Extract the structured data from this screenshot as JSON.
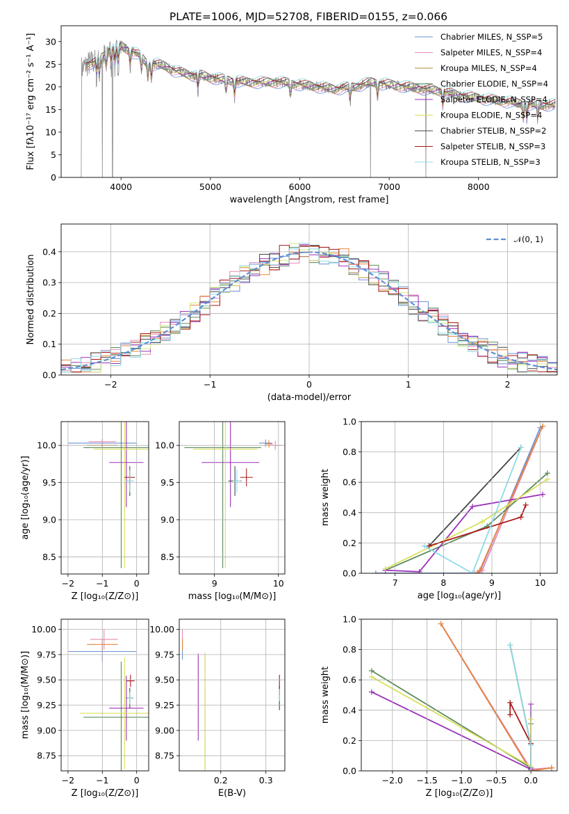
{
  "figure": {
    "title": "PLATE=1006, MJD=52708, FIBERID=0155, z=0.066"
  },
  "chart_data": [
    {
      "id": "spectrum",
      "type": "line",
      "title": "PLATE=1006, MJD=52708, FIBERID=0155, z=0.066",
      "xlabel": "wavelength [Angstrom, rest frame]",
      "ylabel": "Flux [fλ10⁻¹⁷ erg cm⁻² s⁻¹ A⁻¹]",
      "xlim": [
        3330,
        8880
      ],
      "ylim": [
        0,
        33.5
      ],
      "xticks": [
        4000,
        5000,
        6000,
        7000,
        8000
      ],
      "yticks": [
        0,
        5,
        10,
        15,
        20,
        25,
        30
      ],
      "grid": false,
      "legend_position": "top-right",
      "continuum": {
        "x": [
          3560,
          3620,
          3700,
          3760,
          3820,
          3880,
          3950,
          4000,
          4100,
          4200,
          4300,
          4400,
          4500,
          4600,
          4700,
          4800,
          4900,
          5000,
          5200,
          5400,
          5600,
          5800,
          6000,
          6200,
          6400,
          6600,
          6800,
          7000,
          7200,
          7400,
          7600,
          7800,
          8000,
          8200,
          8400,
          8600,
          8800
        ],
        "y": [
          24,
          25,
          25.5,
          26,
          27,
          28.5,
          28,
          29,
          28,
          27,
          25,
          25,
          24.5,
          23.5,
          23,
          22.5,
          22.5,
          22,
          21.5,
          21,
          21,
          21,
          20.5,
          20,
          19.5,
          20,
          21,
          20.5,
          20,
          19.5,
          19,
          18,
          17.5,
          17,
          16.5,
          16,
          16
        ]
      },
      "absorption_lines": [
        3727,
        3760,
        3835,
        3889,
        3933,
        3968,
        4102,
        4227,
        4300,
        4340,
        4861,
        5175,
        5270,
        5895,
        6563,
        6870,
        7600,
        8500,
        8542,
        8662
      ],
      "spikes_to_zero": [
        3555,
        3790,
        3905,
        6790,
        7410
      ],
      "series": [
        {
          "name": "Chabrier MILES, N_SSP=5",
          "color": "#6a8fd6"
        },
        {
          "name": "Salpeter MILES, N_SSP=4",
          "color": "#e889b6"
        },
        {
          "name": "Kroupa MILES, N_SSP=4",
          "color": "#b38a2e"
        },
        {
          "name": "Chabrier ELODIE, N_SSP=4",
          "color": "#5c8a5c"
        },
        {
          "name": "Salpeter ELODIE, N_SSP=4",
          "color": "#9a2fb8"
        },
        {
          "name": "Kroupa ELODIE, N_SSP=4",
          "color": "#d9e05a"
        },
        {
          "name": "Chabrier STELIB, N_SSP=2",
          "color": "#444444"
        },
        {
          "name": "Salpeter STELIB, N_SSP=3",
          "color": "#a81818"
        },
        {
          "name": "Kroupa STELIB, N_SSP=3",
          "color": "#8edbe6"
        }
      ],
      "data_color": "#8a8a8a"
    },
    {
      "id": "residuals",
      "type": "line",
      "title": "",
      "xlabel": "(data-model)/error",
      "ylabel": "Normed distribution",
      "xlim": [
        -2.5,
        2.5
      ],
      "ylim": [
        0,
        0.49
      ],
      "xticks": [
        -2,
        -1,
        0,
        1,
        2
      ],
      "yticks": [
        0.0,
        0.1,
        0.2,
        0.3,
        0.4
      ],
      "grid": true,
      "legend_position": "top-right",
      "gaussian_label": "𝒩(0, 1)",
      "gaussian_color": "#5b8fd6",
      "bin_width": 0.1,
      "hist_colors": [
        "#6a8fd6",
        "#e889b6",
        "#e8843a",
        "#5c8a5c",
        "#9a2fb8",
        "#d4e87a",
        "#444444",
        "#a81818",
        "#8edbe6"
      ]
    },
    {
      "id": "age_vs_Z",
      "type": "scatter",
      "title": "",
      "xlabel": "Z [log₁₀(Z/Z⊙)]",
      "ylabel": "age  [log₁₀(age/yr)]",
      "xlim": [
        -2.2,
        0.35
      ],
      "ylim": [
        8.27,
        10.32
      ],
      "xticks": [
        -2,
        -1,
        0
      ],
      "yticks": [
        8.5,
        9.0,
        9.5,
        10.0
      ],
      "grid": true,
      "points": [
        {
          "x": -1.0,
          "xerr": 1.0,
          "y": 10.03,
          "yerr": 0.05,
          "color": "#6a8fd6"
        },
        {
          "x": -1.0,
          "xerr": 0.4,
          "y": 10.05,
          "yerr": 0.04,
          "color": "#e889b6"
        },
        {
          "x": -1.0,
          "xerr": 0.45,
          "y": 10.0,
          "yerr": 0.03,
          "color": "#e8843a"
        },
        {
          "x": -0.45,
          "xerr": 1.1,
          "y": 9.97,
          "yerr": 1.62,
          "color": "#5c8a5c"
        },
        {
          "x": -0.3,
          "xerr": 0.5,
          "y": 9.77,
          "yerr": 0.6,
          "color": "#9a2fb8"
        },
        {
          "x": -0.35,
          "xerr": 0.9,
          "y": 9.95,
          "yerr": 1.6,
          "color": "#d9e05a"
        },
        {
          "x": -0.2,
          "xerr": 0.1,
          "y": 9.52,
          "yerr": 0.2,
          "color": "#444444"
        },
        {
          "x": -0.2,
          "xerr": 0.15,
          "y": 9.57,
          "yerr": 0.1,
          "color": "#a81818"
        },
        {
          "x": -0.2,
          "xerr": 0.12,
          "y": 9.52,
          "yerr": 0.15,
          "color": "#8edbe6"
        }
      ]
    },
    {
      "id": "age_vs_mass",
      "type": "scatter",
      "title": "",
      "xlabel": "mass [log₁₀(M/M⊙)]",
      "ylabel": "",
      "xlim": [
        8.45,
        10.1
      ],
      "ylim": [
        8.27,
        10.32
      ],
      "xticks": [
        9,
        10
      ],
      "yticks": [
        8.5,
        9.0,
        9.5,
        10.0
      ],
      "grid": true,
      "points": [
        {
          "x": 9.8,
          "xerr": 0.1,
          "y": 10.03,
          "yerr": 0.05,
          "color": "#6a8fd6"
        },
        {
          "x": 9.95,
          "xerr": 0.1,
          "y": 10.0,
          "yerr": 0.06,
          "color": "#e889b6"
        },
        {
          "x": 9.85,
          "xerr": 0.06,
          "y": 10.02,
          "yerr": 0.05,
          "color": "#e8843a"
        },
        {
          "x": 9.13,
          "xerr": 0.6,
          "y": 9.97,
          "yerr": 1.62,
          "color": "#5c8a5c"
        },
        {
          "x": 9.25,
          "xerr": 0.45,
          "y": 9.77,
          "yerr": 0.6,
          "color": "#9a2fb8"
        },
        {
          "x": 9.17,
          "xerr": 0.5,
          "y": 9.95,
          "yerr": 1.6,
          "color": "#d9e05a"
        },
        {
          "x": 9.32,
          "xerr": 0.1,
          "y": 9.52,
          "yerr": 0.2,
          "color": "#444444"
        },
        {
          "x": 9.5,
          "xerr": 0.1,
          "y": 9.57,
          "yerr": 0.12,
          "color": "#a81818"
        },
        {
          "x": 9.35,
          "xerr": 0.06,
          "y": 9.52,
          "yerr": 0.15,
          "color": "#8edbe6"
        }
      ]
    },
    {
      "id": "weight_vs_age",
      "type": "line",
      "title": "",
      "xlabel": "age  [log₁₀(age/yr)]",
      "ylabel": "mass weight",
      "xlim": [
        6.3,
        10.35
      ],
      "ylim": [
        0,
        1.0
      ],
      "xticks": [
        7,
        8,
        9,
        10
      ],
      "yticks": [
        0.0,
        0.2,
        0.4,
        0.6,
        0.8,
        1.0
      ],
      "grid": true,
      "series": [
        {
          "color": "#6a8fd6",
          "x": [
            6.6,
            8.7,
            8.75,
            10.0,
            10.05
          ],
          "y": [
            0.0,
            0.0,
            0.01,
            0.96,
            0.97
          ]
        },
        {
          "color": "#e889b6",
          "x": [
            8.65,
            8.8,
            10.05
          ],
          "y": [
            0.0,
            0.02,
            0.97
          ]
        },
        {
          "color": "#e8843a",
          "x": [
            8.7,
            8.75,
            10.05
          ],
          "y": [
            0.0,
            0.02,
            0.97
          ]
        },
        {
          "color": "#5c8a5c",
          "x": [
            6.8,
            8.9,
            10.15
          ],
          "y": [
            0.02,
            0.31,
            0.66
          ]
        },
        {
          "color": "#9a2fb8",
          "x": [
            6.8,
            7.5,
            8.6,
            10.05
          ],
          "y": [
            0.02,
            0.01,
            0.44,
            0.52
          ]
        },
        {
          "color": "#d9e05a",
          "x": [
            6.8,
            8.8,
            10.15
          ],
          "y": [
            0.03,
            0.34,
            0.62
          ]
        },
        {
          "color": "#444444",
          "x": [
            7.7,
            9.6
          ],
          "y": [
            0.18,
            0.83
          ]
        },
        {
          "color": "#a81818",
          "x": [
            7.7,
            9.6,
            9.7
          ],
          "y": [
            0.18,
            0.37,
            0.45
          ]
        },
        {
          "color": "#8edbe6",
          "x": [
            7.6,
            8.6,
            9.6
          ],
          "y": [
            0.18,
            0.0,
            0.83
          ]
        }
      ]
    },
    {
      "id": "mass_vs_Z",
      "type": "scatter",
      "title": "",
      "xlabel": "Z [log₁₀(Z/Z⊙)]",
      "ylabel": "mass [log₁₀(M/M⊙)]",
      "xlim": [
        -2.2,
        0.35
      ],
      "ylim": [
        8.6,
        10.1
      ],
      "xticks": [
        -2,
        -1,
        0
      ],
      "yticks": [
        8.75,
        9.0,
        9.25,
        9.5,
        9.75,
        10.0
      ],
      "grid": true,
      "points": [
        {
          "x": -1.0,
          "xerr": 1.0,
          "y": 9.78,
          "yerr": 0.1,
          "color": "#6a8fd6"
        },
        {
          "x": -0.95,
          "xerr": 0.4,
          "y": 9.9,
          "yerr": 0.1,
          "color": "#e889b6"
        },
        {
          "x": -1.0,
          "xerr": 0.45,
          "y": 9.85,
          "yerr": 0.06,
          "color": "#e8843a"
        },
        {
          "x": -0.45,
          "xerr": 1.1,
          "y": 9.13,
          "yerr": 0.55,
          "color": "#5c8a5c"
        },
        {
          "x": -0.3,
          "xerr": 0.5,
          "y": 9.22,
          "yerr": 0.32,
          "color": "#9a2fb8"
        },
        {
          "x": -0.35,
          "xerr": 1.3,
          "y": 9.17,
          "yerr": 0.55,
          "color": "#d9e05a"
        },
        {
          "x": -0.2,
          "xerr": 0.1,
          "y": 9.32,
          "yerr": 0.1,
          "color": "#444444"
        },
        {
          "x": -0.18,
          "xerr": 0.12,
          "y": 9.49,
          "yerr": 0.06,
          "color": "#a81818"
        },
        {
          "x": -0.2,
          "xerr": 0.08,
          "y": 9.32,
          "yerr": 0.06,
          "color": "#8edbe6"
        }
      ]
    },
    {
      "id": "mass_vs_ebv",
      "type": "scatter",
      "title": "",
      "xlabel": "E(B-V)",
      "ylabel": "",
      "xlim": [
        0.108,
        0.342
      ],
      "ylim": [
        8.6,
        10.1
      ],
      "xticks": [
        0.2,
        0.3
      ],
      "yticks": [
        8.75,
        9.0,
        9.25,
        9.5,
        9.75,
        10.0
      ],
      "grid": true,
      "points": [
        {
          "x": 0.115,
          "xerr": 0.0,
          "y": 9.8,
          "yerr": 0.1,
          "color": "#6a8fd6"
        },
        {
          "x": 0.115,
          "xerr": 0.0,
          "y": 9.9,
          "yerr": 0.1,
          "color": "#e889b6"
        },
        {
          "x": 0.115,
          "xerr": 0.0,
          "y": 9.85,
          "yerr": 0.06,
          "color": "#e8843a"
        },
        {
          "x": 0.165,
          "xerr": 0.0,
          "y": 9.17,
          "yerr": 0.6,
          "color": "#5c8a5c"
        },
        {
          "x": 0.15,
          "xerr": 0.0,
          "y": 9.33,
          "yerr": 0.43,
          "color": "#9a2fb8"
        },
        {
          "x": 0.165,
          "xerr": 0.0,
          "y": 9.17,
          "yerr": 0.6,
          "color": "#d9e05a"
        },
        {
          "x": 0.33,
          "xerr": 0.0,
          "y": 9.32,
          "yerr": 0.12,
          "color": "#444444"
        },
        {
          "x": 0.33,
          "xerr": 0.0,
          "y": 9.45,
          "yerr": 0.1,
          "color": "#a81818"
        },
        {
          "x": 0.33,
          "xerr": 0.0,
          "y": 9.35,
          "yerr": 0.06,
          "color": "#8edbe6"
        }
      ]
    },
    {
      "id": "weight_vs_Z",
      "type": "line",
      "title": "",
      "xlabel": "Z [log₁₀(Z/Z⊙)]",
      "ylabel": "mass weight",
      "xlim": [
        -2.45,
        0.38
      ],
      "ylim": [
        0,
        1.0
      ],
      "xticks": [
        -2.0,
        -1.5,
        -1.0,
        -0.5,
        0.0
      ],
      "yticks": [
        0.0,
        0.2,
        0.4,
        0.6,
        0.8,
        1.0
      ],
      "grid": true,
      "series": [
        {
          "color": "#6a8fd6",
          "x": [
            -1.3,
            0.0,
            0.3
          ],
          "y": [
            0.97,
            0.0,
            0.02
          ]
        },
        {
          "color": "#e889b6",
          "x": [
            -1.3,
            0.0,
            0.3
          ],
          "y": [
            0.97,
            0.01,
            0.02
          ]
        },
        {
          "color": "#e8843a",
          "x": [
            -1.3,
            0.0,
            0.3
          ],
          "y": [
            0.97,
            0.0,
            0.02
          ]
        },
        {
          "color": "#5c8a5c",
          "x": [
            -2.3,
            0.0,
            0.0
          ],
          "y": [
            0.66,
            0.02,
            0.31
          ]
        },
        {
          "color": "#9a2fb8",
          "x": [
            -2.3,
            0.0,
            0.0
          ],
          "y": [
            0.52,
            0.01,
            0.44
          ]
        },
        {
          "color": "#d9e05a",
          "x": [
            -2.3,
            0.0,
            0.0
          ],
          "y": [
            0.62,
            0.03,
            0.34
          ]
        },
        {
          "color": "#444444",
          "x": [
            -0.3,
            0.0
          ],
          "y": [
            0.83,
            0.17
          ]
        },
        {
          "color": "#a81818",
          "x": [
            -0.3,
            -0.3,
            0.0
          ],
          "y": [
            0.37,
            0.45,
            0.18
          ]
        },
        {
          "color": "#8edbe6",
          "x": [
            -0.3,
            0.0,
            0.0
          ],
          "y": [
            0.83,
            0.17,
            0.0
          ]
        }
      ]
    }
  ]
}
